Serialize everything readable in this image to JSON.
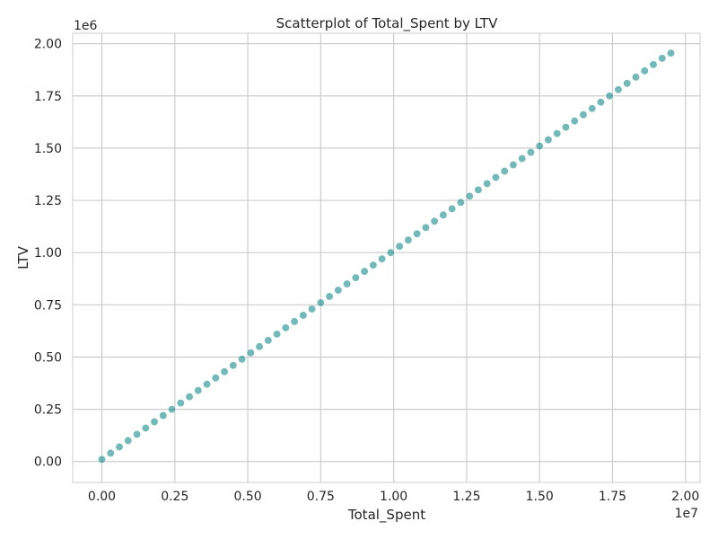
{
  "chart_data": {
    "type": "scatter",
    "title": "Scatterplot of Total_Spent by LTV",
    "xlabel": "Total_Spent",
    "ylabel": "LTV",
    "x_offset_label": "1e7",
    "y_offset_label": "1e6",
    "xlim": [
      -1000000,
      20500000
    ],
    "ylim": [
      -100000,
      2050000
    ],
    "x_ticks": [
      0,
      2500000,
      5000000,
      7500000,
      10000000,
      12500000,
      15000000,
      17500000,
      20000000
    ],
    "x_tick_labels": [
      "0.00",
      "0.25",
      "0.50",
      "0.75",
      "1.00",
      "1.25",
      "1.50",
      "1.75",
      "2.00"
    ],
    "y_ticks": [
      0,
      250000,
      500000,
      750000,
      1000000,
      1250000,
      1500000,
      1750000,
      2000000
    ],
    "y_tick_labels": [
      "0.00",
      "0.25",
      "0.50",
      "0.75",
      "1.00",
      "1.25",
      "1.50",
      "1.75",
      "2.00"
    ],
    "grid": true,
    "series": [
      {
        "color": "#008080",
        "x": [
          0,
          300000,
          600000,
          900000,
          1200000,
          1500000,
          1800000,
          2100000,
          2400000,
          2700000,
          3000000,
          3300000,
          3600000,
          3900000,
          4200000,
          4500000,
          4800000,
          5100000,
          5400000,
          5700000,
          6000000,
          6300000,
          6600000,
          6900000,
          7200000,
          7500000,
          7800000,
          8100000,
          8400000,
          8700000,
          9000000,
          9300000,
          9600000,
          9900000,
          10200000,
          10500000,
          10800000,
          11100000,
          11400000,
          11700000,
          12000000,
          12300000,
          12600000,
          12900000,
          13200000,
          13500000,
          13800000,
          14100000,
          14400000,
          14700000,
          15000000,
          15300000,
          15600000,
          15900000,
          16200000,
          16500000,
          16800000,
          17100000,
          17400000,
          17700000,
          18000000,
          18300000,
          18600000,
          18900000,
          19200000,
          19500000
        ],
        "y": [
          10000,
          40000,
          70000,
          100000,
          130000,
          160000,
          190000,
          220000,
          250000,
          280000,
          310000,
          340000,
          370000,
          400000,
          430000,
          460000,
          490000,
          520000,
          550000,
          580000,
          610000,
          640000,
          670000,
          700000,
          730000,
          760000,
          790000,
          820000,
          850000,
          880000,
          910000,
          940000,
          970000,
          1000000,
          1030000,
          1060000,
          1090000,
          1120000,
          1150000,
          1180000,
          1210000,
          1240000,
          1270000,
          1300000,
          1330000,
          1360000,
          1390000,
          1420000,
          1450000,
          1480000,
          1510000,
          1540000,
          1570000,
          1600000,
          1630000,
          1660000,
          1690000,
          1720000,
          1750000,
          1780000,
          1810000,
          1840000,
          1870000,
          1900000,
          1930000,
          1955000
        ]
      }
    ]
  }
}
